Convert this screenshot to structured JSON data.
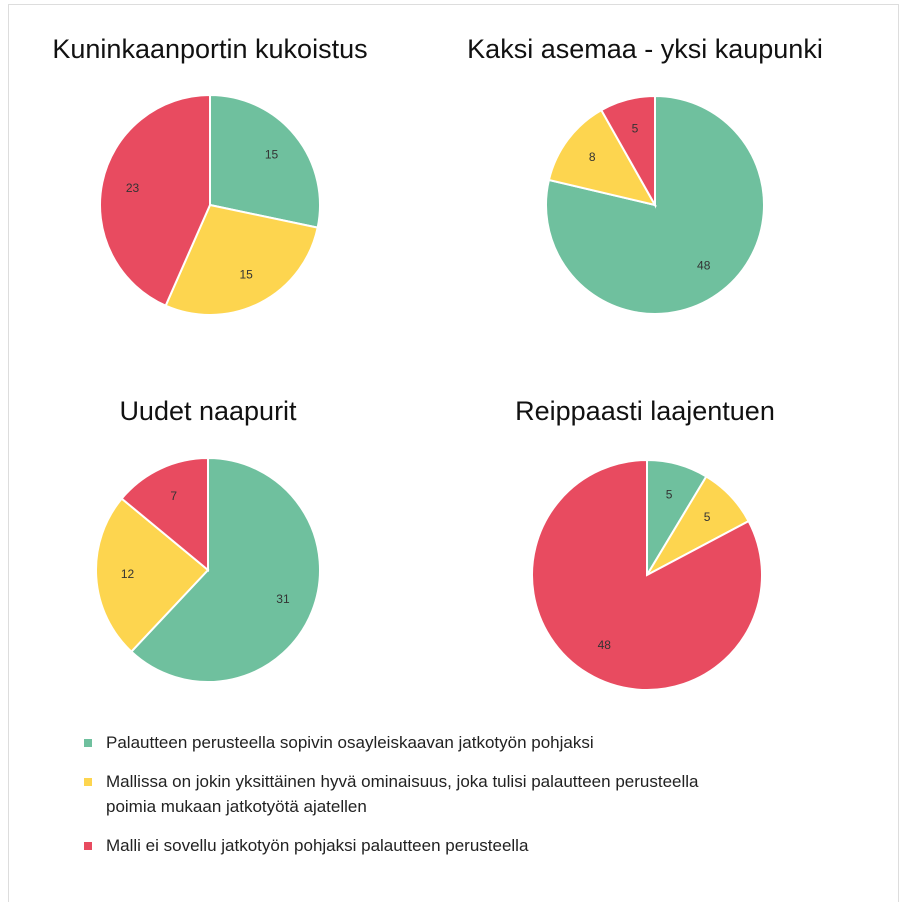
{
  "legend": [
    {
      "name": "Palautteen perusteella sopivin osayleiskaavan jatkotyön pohjaksi",
      "color": "#6fc09e"
    },
    {
      "name": "Mallissa on jokin yksittäinen hyvä ominaisuus, joka tulisi palautteen perusteella poimia mukaan jatkotyötä ajatellen",
      "color": "#fdd54f"
    },
    {
      "name": "Malli ei sovellu jatkotyön pohjaksi palautteen perusteella",
      "color": "#e84b60"
    }
  ],
  "chart_data": [
    {
      "type": "pie",
      "title": "Kuninkaanportin kukoistus",
      "values": [
        15,
        15,
        23
      ]
    },
    {
      "type": "pie",
      "title": "Kaksi asemaa - yksi kaupunki",
      "values": [
        48,
        8,
        5
      ]
    },
    {
      "type": "pie",
      "title": "Uudet naapurit",
      "values": [
        31,
        12,
        7
      ]
    },
    {
      "type": "pie",
      "title": "Reippaasti laajentuen",
      "values": [
        5,
        5,
        48
      ]
    }
  ]
}
